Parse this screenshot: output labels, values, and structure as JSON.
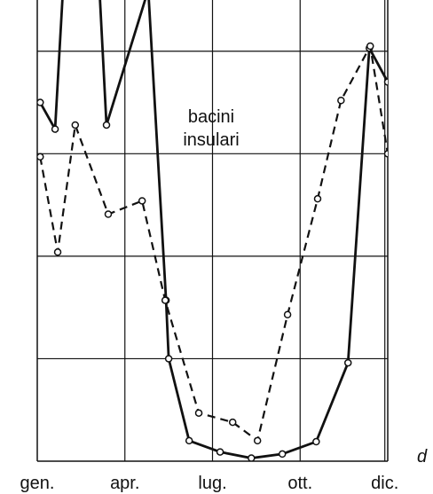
{
  "chart_data": {
    "type": "line",
    "annotation": [
      "bacini",
      "insulari"
    ],
    "corner_label": "d",
    "xlim": [
      0,
      12
    ],
    "xticks": [
      {
        "value": 0,
        "label": "gen."
      },
      {
        "value": 3,
        "label": "apr."
      },
      {
        "value": 6,
        "label": "lug."
      },
      {
        "value": 9,
        "label": "ott."
      },
      {
        "value": 11.9,
        "label": "dic."
      }
    ],
    "ylim": [
      0,
      4.5
    ],
    "yticks": [
      1,
      2,
      3,
      4
    ],
    "grid": true,
    "series": [
      {
        "color": "#111111",
        "linestyle": "solid",
        "x": [
          0.1,
          0.61,
          0.88,
          2.13,
          2.37,
          3.8,
          4.41,
          4.5,
          5.2,
          6.26,
          7.33,
          8.39,
          9.55,
          10.64,
          11.37,
          12
        ],
        "values": [
          3.5,
          3.24,
          4.6,
          4.6,
          3.28,
          4.6,
          1.57,
          1.0,
          0.2,
          0.09,
          0.03,
          0.07,
          0.19,
          0.96,
          4.03,
          3.7
        ]
      },
      {
        "color": "#111111",
        "linestyle": "dashed",
        "x": [
          0.1,
          0.7,
          1.3,
          2.43,
          3.59,
          4.38,
          5.53,
          6.69,
          7.54,
          8.57,
          9.6,
          10.4,
          11.4,
          12
        ],
        "values": [
          2.97,
          2.04,
          3.28,
          2.41,
          2.54,
          1.57,
          0.47,
          0.38,
          0.2,
          1.43,
          2.56,
          3.52,
          4.05,
          3.0
        ]
      }
    ]
  }
}
